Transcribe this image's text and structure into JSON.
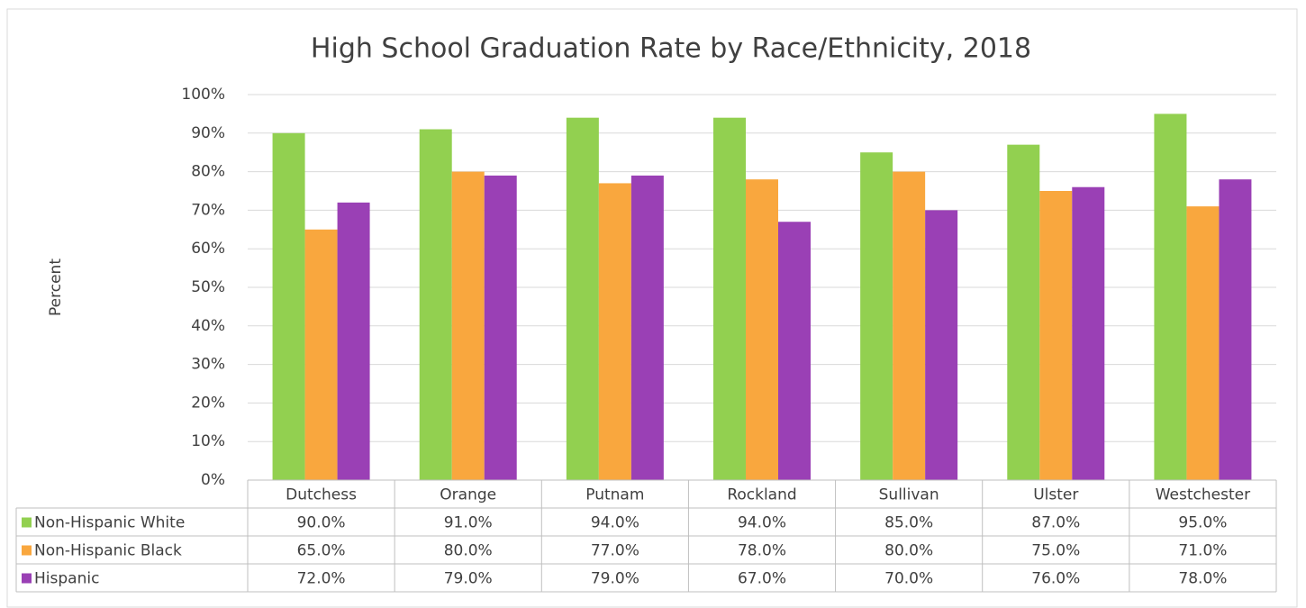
{
  "chart_data": {
    "type": "bar",
    "title": "High School Graduation Rate by Race/Ethnicity, 2018",
    "ylabel": "Percent",
    "categories": [
      "Dutchess",
      "Orange",
      "Putnam",
      "Rockland",
      "Sullivan",
      "Ulster",
      "Westchester"
    ],
    "series": [
      {
        "name": "Non-Hispanic White",
        "color": "#92d050",
        "values": [
          90,
          91,
          94,
          94,
          85,
          87,
          95
        ],
        "value_labels": [
          "90.0%",
          "91.0%",
          "94.0%",
          "94.0%",
          "85.0%",
          "87.0%",
          "95.0%"
        ]
      },
      {
        "name": "Non-Hispanic Black",
        "color": "#f9a73e",
        "values": [
          65,
          80,
          77,
          78,
          80,
          75,
          71
        ],
        "value_labels": [
          "65.0%",
          "80.0%",
          "77.0%",
          "78.0%",
          "80.0%",
          "75.0%",
          "71.0%"
        ]
      },
      {
        "name": "Hispanic",
        "color": "#9a40b5",
        "values": [
          72,
          79,
          79,
          67,
          70,
          76,
          78
        ],
        "value_labels": [
          "72.0%",
          "79.0%",
          "79.0%",
          "67.0%",
          "70.0%",
          "76.0%",
          "78.0%"
        ]
      }
    ],
    "ylim": [
      0,
      100
    ],
    "yticks": [
      {
        "value": 0,
        "label": "0%"
      },
      {
        "value": 10,
        "label": "10%"
      },
      {
        "value": 20,
        "label": "20%"
      },
      {
        "value": 30,
        "label": "30%"
      },
      {
        "value": 40,
        "label": "40%"
      },
      {
        "value": 50,
        "label": "50%"
      },
      {
        "value": 60,
        "label": "60%"
      },
      {
        "value": 70,
        "label": "70%"
      },
      {
        "value": 80,
        "label": "80%"
      },
      {
        "value": 90,
        "label": "90%"
      },
      {
        "value": 100,
        "label": "100%"
      }
    ],
    "grid": true
  }
}
